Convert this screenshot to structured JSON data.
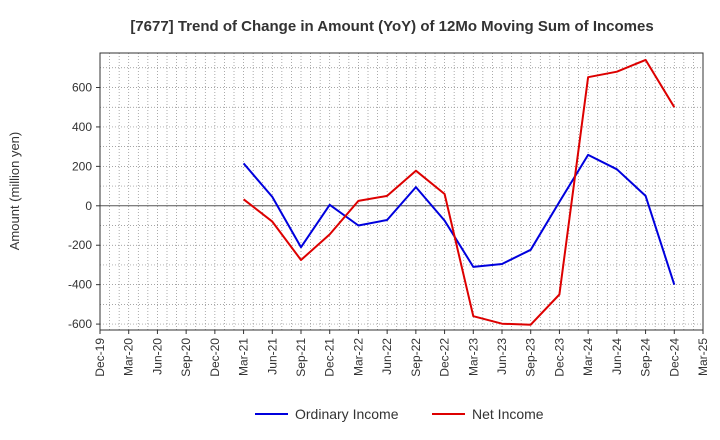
{
  "chart_data": {
    "type": "line",
    "title": "[7677]  Trend of Change in Amount (YoY) of 12Mo Moving Sum of Incomes",
    "xlabel": "",
    "ylabel": "Amount (million yen)",
    "x_ticks": [
      "Dec-19",
      "Mar-20",
      "Jun-20",
      "Sep-20",
      "Dec-20",
      "Mar-21",
      "Jun-21",
      "Sep-21",
      "Dec-21",
      "Mar-22",
      "Jun-22",
      "Sep-22",
      "Dec-22",
      "Mar-23",
      "Jun-23",
      "Sep-23",
      "Dec-23",
      "Mar-24",
      "Jun-24",
      "Sep-24",
      "Dec-24",
      "Mar-25"
    ],
    "y_ticks": [
      -600,
      -400,
      -200,
      0,
      200,
      400,
      600
    ],
    "ylim": [
      -630,
      775
    ],
    "grid": true,
    "legend_position": "bottom",
    "series": [
      {
        "name": "Ordinary Income",
        "color": "#0000dd",
        "x": [
          "Mar-21",
          "Jun-21",
          "Sep-21",
          "Dec-21",
          "Mar-22",
          "Jun-22",
          "Sep-22",
          "Dec-22",
          "Mar-23",
          "Jun-23",
          "Sep-23",
          "Dec-23",
          "Mar-24",
          "Jun-24",
          "Sep-24",
          "Dec-24"
        ],
        "values": [
          215,
          45,
          -210,
          5,
          -100,
          -72,
          95,
          -75,
          -310,
          -295,
          -223,
          20,
          258,
          185,
          50,
          -400
        ]
      },
      {
        "name": "Net Income",
        "color": "#dd0000",
        "x": [
          "Mar-21",
          "Jun-21",
          "Sep-21",
          "Dec-21",
          "Mar-22",
          "Jun-22",
          "Sep-22",
          "Dec-22",
          "Mar-23",
          "Jun-23",
          "Sep-23",
          "Dec-23",
          "Mar-24",
          "Jun-24",
          "Sep-24",
          "Dec-24"
        ],
        "values": [
          33,
          -80,
          -275,
          -145,
          25,
          50,
          178,
          60,
          -560,
          -598,
          -603,
          -450,
          652,
          680,
          740,
          500
        ]
      }
    ]
  }
}
